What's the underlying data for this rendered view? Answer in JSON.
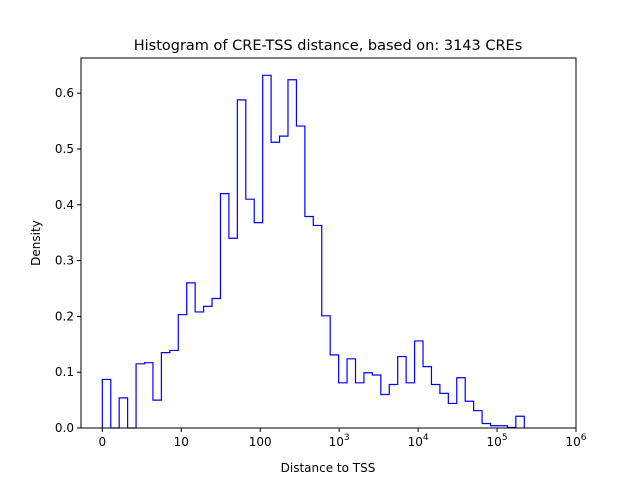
{
  "chart_data": {
    "type": "histogram",
    "title": "Histogram of CRE-TSS distance, based on: 3143 CREs",
    "xlabel": "Distance to TSS",
    "ylabel": "Density",
    "xscale": "symlog (linear 0-10, log above)",
    "xlim_decades": [
      -0.27,
      6
    ],
    "ylim": [
      0,
      0.663
    ],
    "bin_start_decades": 0,
    "bin_width_decades": 0.1069,
    "color": "#0000ff",
    "x_ticks": [
      {
        "pos": 0,
        "base": "0",
        "exp": ""
      },
      {
        "pos": 1,
        "base": "10",
        "exp": ""
      },
      {
        "pos": 2,
        "base": "100",
        "exp": ""
      },
      {
        "pos": 3,
        "base": "10",
        "exp": "3"
      },
      {
        "pos": 4,
        "base": "10",
        "exp": "4"
      },
      {
        "pos": 5,
        "base": "10",
        "exp": "5"
      },
      {
        "pos": 6,
        "base": "10",
        "exp": "6"
      }
    ],
    "y_ticks": [
      "0.0",
      "0.1",
      "0.2",
      "0.3",
      "0.4",
      "0.5",
      "0.6"
    ],
    "values": [
      0.087,
      0,
      0.054,
      0,
      0.115,
      0.117,
      0.05,
      0.135,
      0.139,
      0.203,
      0.26,
      0.208,
      0.218,
      0.232,
      0.42,
      0.34,
      0.588,
      0.41,
      0.368,
      0.632,
      0.512,
      0.523,
      0.624,
      0.541,
      0.379,
      0.363,
      0.201,
      0.131,
      0.081,
      0.124,
      0.081,
      0.099,
      0.095,
      0.06,
      0.078,
      0.128,
      0.081,
      0.156,
      0.11,
      0.078,
      0.062,
      0.044,
      0.09,
      0.048,
      0.031,
      0.008,
      0.004,
      0.004,
      0.001,
      0.021
    ]
  }
}
